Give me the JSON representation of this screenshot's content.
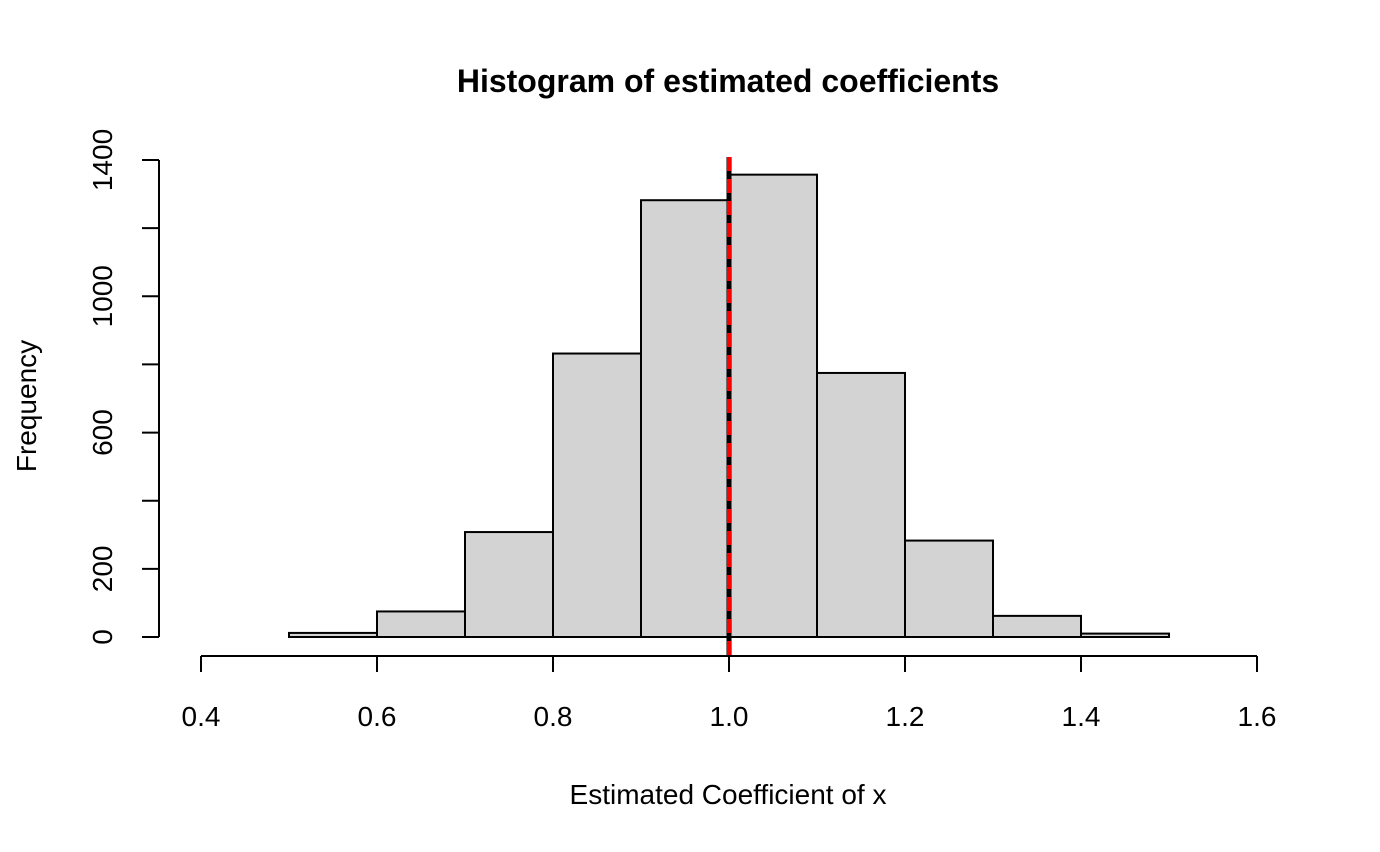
{
  "chart_data": {
    "type": "bar",
    "title": "Histogram of estimated coefficients",
    "xlabel": "Estimated Coefficient of x",
    "ylabel": "Frequency",
    "bins": [
      {
        "from": 0.4,
        "to": 0.5,
        "count": 0
      },
      {
        "from": 0.5,
        "to": 0.6,
        "count": 12
      },
      {
        "from": 0.6,
        "to": 0.7,
        "count": 75
      },
      {
        "from": 0.7,
        "to": 0.8,
        "count": 308
      },
      {
        "from": 0.8,
        "to": 0.9,
        "count": 832
      },
      {
        "from": 0.9,
        "to": 1.0,
        "count": 1282
      },
      {
        "from": 1.0,
        "to": 1.1,
        "count": 1357
      },
      {
        "from": 1.1,
        "to": 1.2,
        "count": 775
      },
      {
        "from": 1.2,
        "to": 1.3,
        "count": 283
      },
      {
        "from": 1.3,
        "to": 1.4,
        "count": 62
      },
      {
        "from": 1.4,
        "to": 1.5,
        "count": 10
      },
      {
        "from": 1.5,
        "to": 1.6,
        "count": 0
      }
    ],
    "xlim": [
      0.4,
      1.6
    ],
    "ylim": [
      0,
      1400
    ],
    "x_ticks": [
      "0.4",
      "0.6",
      "0.8",
      "1.0",
      "1.2",
      "1.4",
      "1.6"
    ],
    "y_ticks": [
      "0",
      "200",
      "600",
      "1000",
      "1400"
    ],
    "y_minor_ticks": [
      400,
      800,
      1200
    ],
    "reference_lines": [
      {
        "x": 1.0,
        "color": "#000000",
        "style": "solid"
      },
      {
        "x": 1.0,
        "color": "#ff0000",
        "style": "dashed"
      }
    ],
    "bar_fill": "#d3d3d3",
    "bar_stroke": "#000000",
    "grid": false
  }
}
